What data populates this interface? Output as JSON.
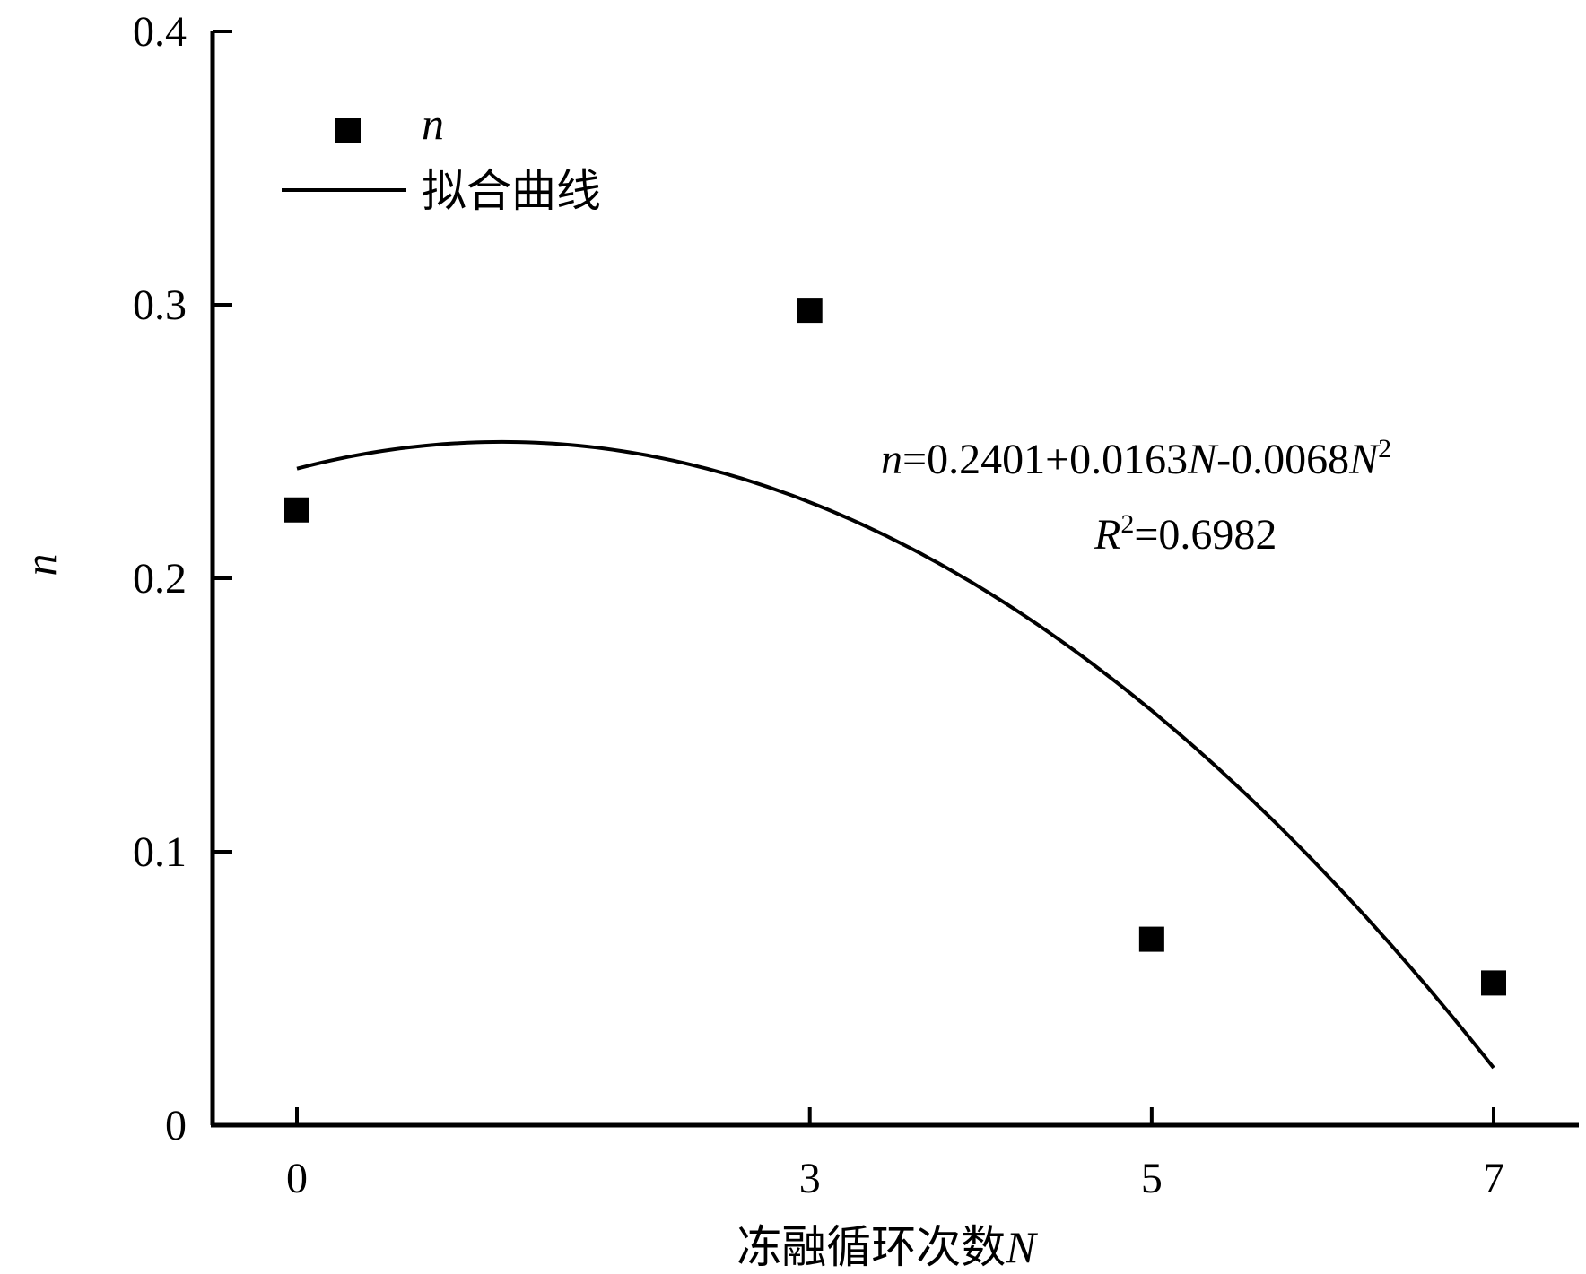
{
  "chart_data": {
    "type": "scatter",
    "xlabel": "冻融循环次数",
    "xlabel_var": "N",
    "ylabel": "n",
    "x_ticks": [
      0,
      3,
      5,
      7
    ],
    "y_ticks": [
      0,
      0.1,
      0.2,
      0.3,
      0.4
    ],
    "y_tick_labels": [
      "0",
      "0.1",
      "0.2",
      "0.3",
      "0.4"
    ],
    "ylim": [
      0,
      0.4
    ],
    "grid": false,
    "legend_position": "top-left",
    "series": [
      {
        "name": "n",
        "kind": "scatter",
        "marker": "square",
        "x": [
          0,
          3,
          5,
          7
        ],
        "y": [
          0.225,
          0.298,
          0.068,
          0.052
        ]
      },
      {
        "name": "拟合曲线",
        "kind": "line",
        "coefficients": [
          0.2401,
          0.0163,
          -0.0068
        ],
        "x_range": [
          0,
          7
        ]
      }
    ],
    "annotations": {
      "equation": {
        "var": "n",
        "body": "=0.2401+0.0163",
        "var2": "N",
        "body2": "-0.0068",
        "var3": "N",
        "sup": "2"
      },
      "r2": {
        "var": "R",
        "sup": "2",
        "value": "=0.6982"
      }
    },
    "colors": {
      "marker": "#000000",
      "line": "#000000",
      "axis": "#000000"
    }
  }
}
